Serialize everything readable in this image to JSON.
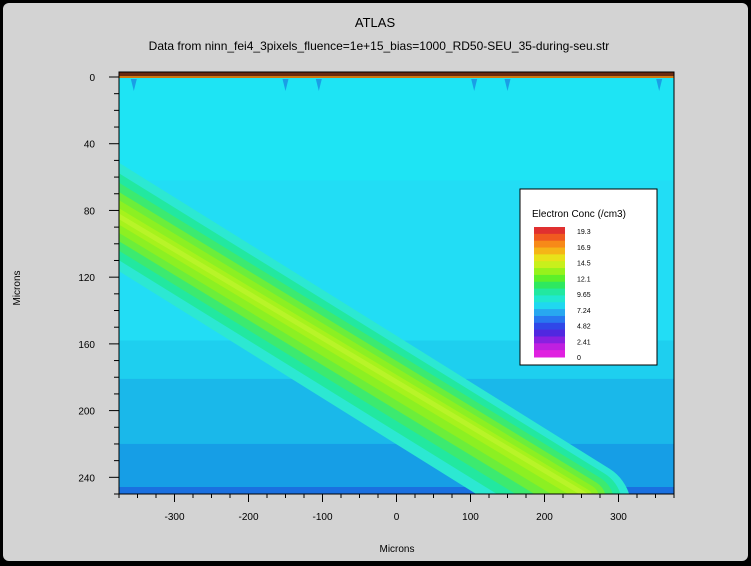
{
  "chart_data": {
    "type": "heatmap",
    "title": "ATLAS",
    "subtitle": "Data from ninn_fei4_3pixels_fluence=1e+15_bias=1000_RD50-SEU_35-during-seu.str",
    "xlabel": "Microns",
    "ylabel": "Microns",
    "xlim": [
      -375,
      375
    ],
    "ylim": [
      0,
      250
    ],
    "y_axis_inverted": true,
    "x_ticks": [
      -300,
      -200,
      -100,
      0,
      100,
      200,
      300
    ],
    "y_ticks": [
      0,
      40,
      80,
      120,
      160,
      200,
      240
    ],
    "legend": {
      "title": "Electron Conc (/cm3)",
      "position": "right",
      "levels": [
        "19.3",
        "16.9",
        "14.5",
        "12.1",
        "9.65",
        "7.24",
        "4.82",
        "2.41",
        "0"
      ],
      "level_values": [
        19.3,
        16.9,
        14.5,
        12.1,
        9.65,
        7.24,
        4.82,
        2.41,
        0
      ],
      "colors": [
        "#e03030",
        "#f05a20",
        "#f78a18",
        "#f5b517",
        "#e8e21a",
        "#c8f01c",
        "#96f21c",
        "#5cf02a",
        "#2ee860",
        "#22e8a0",
        "#20e8d0",
        "#20d8f0",
        "#28a8f0",
        "#2878f0",
        "#3048e8",
        "#5028e0",
        "#8a20e0",
        "#c020e0",
        "#e020e0"
      ]
    },
    "background_bands": [
      {
        "y_from": 0,
        "y_to": 62,
        "level": 7.5,
        "color": "#1ee4f4"
      },
      {
        "y_from": 62,
        "y_to": 158,
        "level": 7.2,
        "color": "#22ddf5"
      },
      {
        "y_from": 158,
        "y_to": 181,
        "level": 7.0,
        "color": "#1ecfef"
      },
      {
        "y_from": 181,
        "y_to": 220,
        "level": 6.7,
        "color": "#1ab8ea"
      },
      {
        "y_from": 220,
        "y_to": 250,
        "level": 6.3,
        "color": "#169ee6"
      }
    ],
    "ion_track": {
      "start": {
        "x": -375,
        "y": 80
      },
      "end": {
        "x": 255,
        "y": 250
      },
      "core_level": 12.1,
      "halo_level": 9.65
    },
    "top_contacts_x": [
      -355,
      -150,
      -105,
      105,
      150,
      355
    ]
  }
}
